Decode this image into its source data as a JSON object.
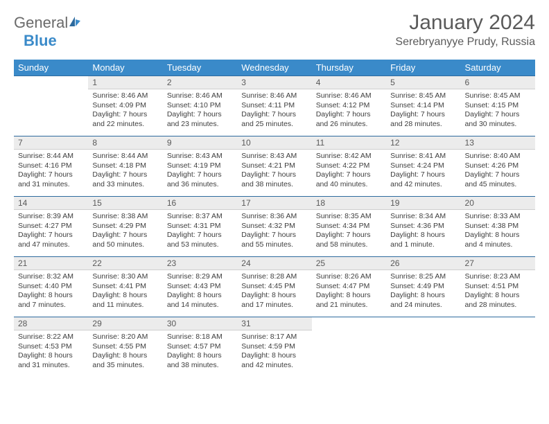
{
  "logo": {
    "word1": "General",
    "word2": "Blue"
  },
  "title": "January 2024",
  "location": "Serebryanyye Prudy, Russia",
  "colors": {
    "header_bg": "#3a8ac9",
    "header_text": "#ffffff",
    "daynum_bg": "#ececec",
    "daynum_rule": "#2d6a9e",
    "body_text": "#3d3d3d",
    "title_text": "#5a5a5a",
    "logo_gray": "#6a6a6a",
    "logo_blue": "#3a8ac9"
  },
  "type": "table",
  "columns": [
    "Sunday",
    "Monday",
    "Tuesday",
    "Wednesday",
    "Thursday",
    "Friday",
    "Saturday"
  ],
  "weeks": [
    [
      null,
      {
        "day": "1",
        "sunrise": "Sunrise: 8:46 AM",
        "sunset": "Sunset: 4:09 PM",
        "daylight": "Daylight: 7 hours and 22 minutes."
      },
      {
        "day": "2",
        "sunrise": "Sunrise: 8:46 AM",
        "sunset": "Sunset: 4:10 PM",
        "daylight": "Daylight: 7 hours and 23 minutes."
      },
      {
        "day": "3",
        "sunrise": "Sunrise: 8:46 AM",
        "sunset": "Sunset: 4:11 PM",
        "daylight": "Daylight: 7 hours and 25 minutes."
      },
      {
        "day": "4",
        "sunrise": "Sunrise: 8:46 AM",
        "sunset": "Sunset: 4:12 PM",
        "daylight": "Daylight: 7 hours and 26 minutes."
      },
      {
        "day": "5",
        "sunrise": "Sunrise: 8:45 AM",
        "sunset": "Sunset: 4:14 PM",
        "daylight": "Daylight: 7 hours and 28 minutes."
      },
      {
        "day": "6",
        "sunrise": "Sunrise: 8:45 AM",
        "sunset": "Sunset: 4:15 PM",
        "daylight": "Daylight: 7 hours and 30 minutes."
      }
    ],
    [
      {
        "day": "7",
        "sunrise": "Sunrise: 8:44 AM",
        "sunset": "Sunset: 4:16 PM",
        "daylight": "Daylight: 7 hours and 31 minutes."
      },
      {
        "day": "8",
        "sunrise": "Sunrise: 8:44 AM",
        "sunset": "Sunset: 4:18 PM",
        "daylight": "Daylight: 7 hours and 33 minutes."
      },
      {
        "day": "9",
        "sunrise": "Sunrise: 8:43 AM",
        "sunset": "Sunset: 4:19 PM",
        "daylight": "Daylight: 7 hours and 36 minutes."
      },
      {
        "day": "10",
        "sunrise": "Sunrise: 8:43 AM",
        "sunset": "Sunset: 4:21 PM",
        "daylight": "Daylight: 7 hours and 38 minutes."
      },
      {
        "day": "11",
        "sunrise": "Sunrise: 8:42 AM",
        "sunset": "Sunset: 4:22 PM",
        "daylight": "Daylight: 7 hours and 40 minutes."
      },
      {
        "day": "12",
        "sunrise": "Sunrise: 8:41 AM",
        "sunset": "Sunset: 4:24 PM",
        "daylight": "Daylight: 7 hours and 42 minutes."
      },
      {
        "day": "13",
        "sunrise": "Sunrise: 8:40 AM",
        "sunset": "Sunset: 4:26 PM",
        "daylight": "Daylight: 7 hours and 45 minutes."
      }
    ],
    [
      {
        "day": "14",
        "sunrise": "Sunrise: 8:39 AM",
        "sunset": "Sunset: 4:27 PM",
        "daylight": "Daylight: 7 hours and 47 minutes."
      },
      {
        "day": "15",
        "sunrise": "Sunrise: 8:38 AM",
        "sunset": "Sunset: 4:29 PM",
        "daylight": "Daylight: 7 hours and 50 minutes."
      },
      {
        "day": "16",
        "sunrise": "Sunrise: 8:37 AM",
        "sunset": "Sunset: 4:31 PM",
        "daylight": "Daylight: 7 hours and 53 minutes."
      },
      {
        "day": "17",
        "sunrise": "Sunrise: 8:36 AM",
        "sunset": "Sunset: 4:32 PM",
        "daylight": "Daylight: 7 hours and 55 minutes."
      },
      {
        "day": "18",
        "sunrise": "Sunrise: 8:35 AM",
        "sunset": "Sunset: 4:34 PM",
        "daylight": "Daylight: 7 hours and 58 minutes."
      },
      {
        "day": "19",
        "sunrise": "Sunrise: 8:34 AM",
        "sunset": "Sunset: 4:36 PM",
        "daylight": "Daylight: 8 hours and 1 minute."
      },
      {
        "day": "20",
        "sunrise": "Sunrise: 8:33 AM",
        "sunset": "Sunset: 4:38 PM",
        "daylight": "Daylight: 8 hours and 4 minutes."
      }
    ],
    [
      {
        "day": "21",
        "sunrise": "Sunrise: 8:32 AM",
        "sunset": "Sunset: 4:40 PM",
        "daylight": "Daylight: 8 hours and 7 minutes."
      },
      {
        "day": "22",
        "sunrise": "Sunrise: 8:30 AM",
        "sunset": "Sunset: 4:41 PM",
        "daylight": "Daylight: 8 hours and 11 minutes."
      },
      {
        "day": "23",
        "sunrise": "Sunrise: 8:29 AM",
        "sunset": "Sunset: 4:43 PM",
        "daylight": "Daylight: 8 hours and 14 minutes."
      },
      {
        "day": "24",
        "sunrise": "Sunrise: 8:28 AM",
        "sunset": "Sunset: 4:45 PM",
        "daylight": "Daylight: 8 hours and 17 minutes."
      },
      {
        "day": "25",
        "sunrise": "Sunrise: 8:26 AM",
        "sunset": "Sunset: 4:47 PM",
        "daylight": "Daylight: 8 hours and 21 minutes."
      },
      {
        "day": "26",
        "sunrise": "Sunrise: 8:25 AM",
        "sunset": "Sunset: 4:49 PM",
        "daylight": "Daylight: 8 hours and 24 minutes."
      },
      {
        "day": "27",
        "sunrise": "Sunrise: 8:23 AM",
        "sunset": "Sunset: 4:51 PM",
        "daylight": "Daylight: 8 hours and 28 minutes."
      }
    ],
    [
      {
        "day": "28",
        "sunrise": "Sunrise: 8:22 AM",
        "sunset": "Sunset: 4:53 PM",
        "daylight": "Daylight: 8 hours and 31 minutes."
      },
      {
        "day": "29",
        "sunrise": "Sunrise: 8:20 AM",
        "sunset": "Sunset: 4:55 PM",
        "daylight": "Daylight: 8 hours and 35 minutes."
      },
      {
        "day": "30",
        "sunrise": "Sunrise: 8:18 AM",
        "sunset": "Sunset: 4:57 PM",
        "daylight": "Daylight: 8 hours and 38 minutes."
      },
      {
        "day": "31",
        "sunrise": "Sunrise: 8:17 AM",
        "sunset": "Sunset: 4:59 PM",
        "daylight": "Daylight: 8 hours and 42 minutes."
      },
      null,
      null,
      null
    ]
  ]
}
